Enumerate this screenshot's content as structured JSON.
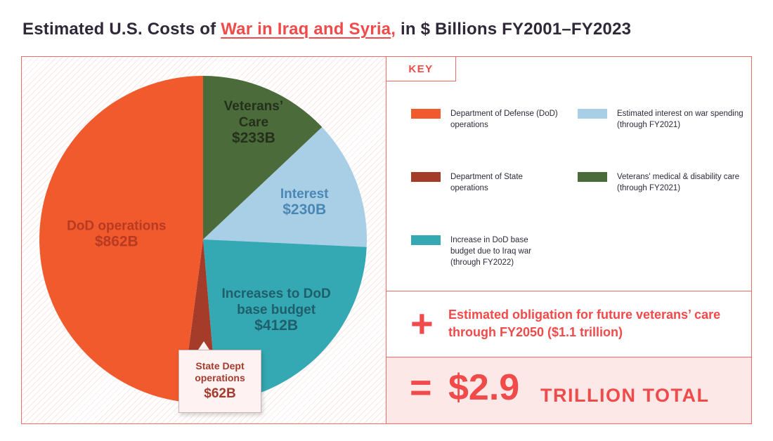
{
  "title": {
    "prefix": "Estimated U.S. Costs of ",
    "highlight": "War in Iraq and Syria",
    "comma": ",",
    "suffix": " in $ Billions FY2001–FY2023"
  },
  "key": {
    "heading": "KEY",
    "items": [
      {
        "id": "dod",
        "label": "Department of Defense (DoD) operations",
        "color": "#f05a2c"
      },
      {
        "id": "interest",
        "label": "Estimated interest on war spending (through FY2021)",
        "color": "#a9cfe7"
      },
      {
        "id": "state",
        "label": "Department of State operations",
        "color": "#a53b29"
      },
      {
        "id": "veterans",
        "label": "Veterans' medical & disability care (through FY2021)",
        "color": "#4b6c3a"
      },
      {
        "id": "base",
        "label": "Increase in DoD base budget due to Iraq war (through FY2022)",
        "color": "#35a9b3"
      }
    ]
  },
  "obligation": {
    "symbol": "+",
    "text": "Estimated obligation for future veterans’ care through FY2050 ($1.1 trillion)"
  },
  "total": {
    "symbol": "=",
    "amount": "$2.9",
    "label": "TRILLION TOTAL"
  },
  "chart_data": {
    "type": "pie",
    "categories": [
      "DoD operations",
      "Veterans’ Care",
      "Interest",
      "Increases to DoD base budget",
      "State Dept operations"
    ],
    "values": [
      862,
      233,
      230,
      412,
      62
    ],
    "colors": [
      "#f05a2c",
      "#4b6c3a",
      "#a9cfe7",
      "#35a9b3",
      "#a53b29"
    ],
    "labels": [
      {
        "name_lines": [
          "DoD operations"
        ],
        "value": "$862B",
        "color": "#b83a22"
      },
      {
        "name_lines": [
          "Veterans’",
          "Care"
        ],
        "value": "$233B",
        "color": "#24301c"
      },
      {
        "name_lines": [
          "Interest"
        ],
        "value": "$230B",
        "color": "#4b87b5"
      },
      {
        "name_lines": [
          "Increases to DoD",
          "base budget"
        ],
        "value": "$412B",
        "color": "#1f5f6b"
      },
      {
        "name_lines": [
          "State Dept",
          "operations"
        ],
        "value": "$62B",
        "color": "#a43b2d"
      }
    ]
  }
}
